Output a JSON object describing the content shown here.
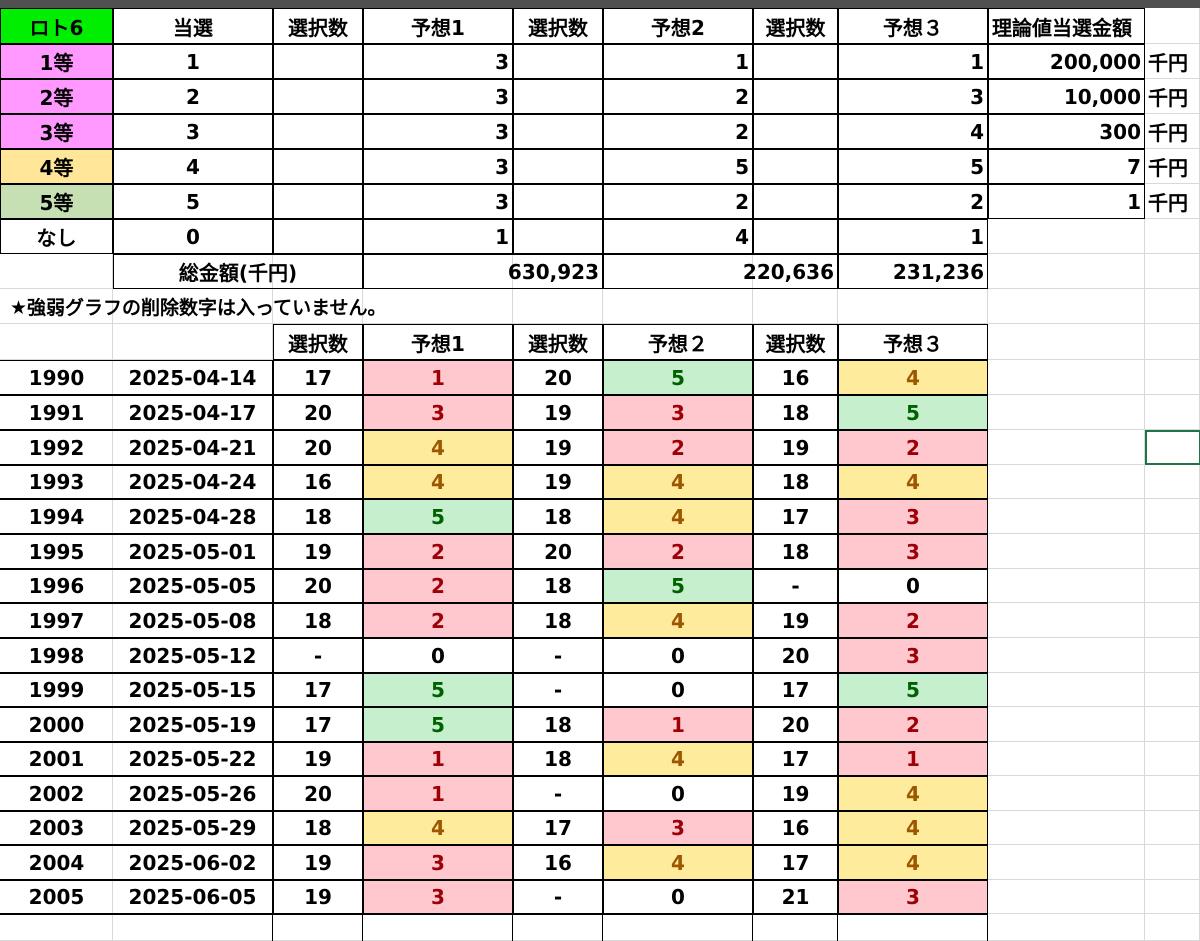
{
  "colors": {
    "green_header": "#00ee00",
    "pink": "#ff99ff",
    "yellow": "#ffe699",
    "light_green": "#c6e0b4",
    "cell_pink": "#ffc7ce",
    "cell_yellow": "#ffeb9c",
    "cell_green": "#c6efce",
    "text_red": "#9c0006",
    "text_brown": "#9c5700",
    "text_green": "#006100",
    "gridline": "#d9d9d9",
    "selection": "#217346"
  },
  "summary": {
    "headers": [
      "ロト6",
      "当選",
      "選択数",
      "予想1",
      "選択数",
      "予想2",
      "選択数",
      "予想３",
      "理論値当選金額"
    ],
    "rows": [
      {
        "rank": "1等",
        "win": "1",
        "p1": "3",
        "p2": "1",
        "p3": "1",
        "amount": "200,000",
        "unit": "千円"
      },
      {
        "rank": "2等",
        "win": "2",
        "p1": "3",
        "p2": "2",
        "p3": "3",
        "amount": "10,000",
        "unit": "千円"
      },
      {
        "rank": "3等",
        "win": "3",
        "p1": "3",
        "p2": "2",
        "p3": "4",
        "amount": "300",
        "unit": "千円"
      },
      {
        "rank": "4等",
        "win": "4",
        "p1": "3",
        "p2": "5",
        "p3": "5",
        "amount": "7",
        "unit": "千円"
      },
      {
        "rank": "5等",
        "win": "5",
        "p1": "3",
        "p2": "2",
        "p3": "2",
        "amount": "1",
        "unit": "千円"
      },
      {
        "rank": "なし",
        "win": "0",
        "p1": "1",
        "p2": "4",
        "p3": "1",
        "amount": "",
        "unit": ""
      }
    ],
    "total_label": "総金額(千円)",
    "totals": {
      "p1": "630,923",
      "p2": "220,636",
      "p3": "231,236"
    }
  },
  "notice": "★強弱グラフの削除数字は入っていません。",
  "draws": {
    "headers": [
      "選択数",
      "予想1",
      "選択数",
      "予想２",
      "選択数",
      "予想３"
    ],
    "rows": [
      {
        "no": "1990",
        "date": "2025-04-14",
        "s1": "17",
        "p1": "1",
        "s2": "20",
        "p2": "5",
        "s3": "16",
        "p3": "4"
      },
      {
        "no": "1991",
        "date": "2025-04-17",
        "s1": "20",
        "p1": "3",
        "s2": "19",
        "p2": "3",
        "s3": "18",
        "p3": "5"
      },
      {
        "no": "1992",
        "date": "2025-04-21",
        "s1": "20",
        "p1": "4",
        "s2": "19",
        "p2": "2",
        "s3": "19",
        "p3": "2"
      },
      {
        "no": "1993",
        "date": "2025-04-24",
        "s1": "16",
        "p1": "4",
        "s2": "19",
        "p2": "4",
        "s3": "18",
        "p3": "4"
      },
      {
        "no": "1994",
        "date": "2025-04-28",
        "s1": "18",
        "p1": "5",
        "s2": "18",
        "p2": "4",
        "s3": "17",
        "p3": "3"
      },
      {
        "no": "1995",
        "date": "2025-05-01",
        "s1": "19",
        "p1": "2",
        "s2": "20",
        "p2": "2",
        "s3": "18",
        "p3": "3"
      },
      {
        "no": "1996",
        "date": "2025-05-05",
        "s1": "20",
        "p1": "2",
        "s2": "18",
        "p2": "5",
        "s3": "-",
        "p3": "0"
      },
      {
        "no": "1997",
        "date": "2025-05-08",
        "s1": "18",
        "p1": "2",
        "s2": "18",
        "p2": "4",
        "s3": "19",
        "p3": "2"
      },
      {
        "no": "1998",
        "date": "2025-05-12",
        "s1": "-",
        "p1": "0",
        "s2": "-",
        "p2": "0",
        "s3": "20",
        "p3": "3"
      },
      {
        "no": "1999",
        "date": "2025-05-15",
        "s1": "17",
        "p1": "5",
        "s2": "-",
        "p2": "0",
        "s3": "17",
        "p3": "5"
      },
      {
        "no": "2000",
        "date": "2025-05-19",
        "s1": "17",
        "p1": "5",
        "s2": "18",
        "p2": "1",
        "s3": "20",
        "p3": "2"
      },
      {
        "no": "2001",
        "date": "2025-05-22",
        "s1": "19",
        "p1": "1",
        "s2": "18",
        "p2": "4",
        "s3": "17",
        "p3": "1"
      },
      {
        "no": "2002",
        "date": "2025-05-26",
        "s1": "20",
        "p1": "1",
        "s2": "-",
        "p2": "0",
        "s3": "19",
        "p3": "4"
      },
      {
        "no": "2003",
        "date": "2025-05-29",
        "s1": "18",
        "p1": "4",
        "s2": "17",
        "p2": "3",
        "s3": "16",
        "p3": "4"
      },
      {
        "no": "2004",
        "date": "2025-06-02",
        "s1": "19",
        "p1": "3",
        "s2": "16",
        "p2": "4",
        "s3": "17",
        "p3": "4"
      },
      {
        "no": "2005",
        "date": "2025-06-05",
        "s1": "19",
        "p1": "3",
        "s2": "-",
        "p2": "0",
        "s3": "21",
        "p3": "3"
      }
    ]
  }
}
